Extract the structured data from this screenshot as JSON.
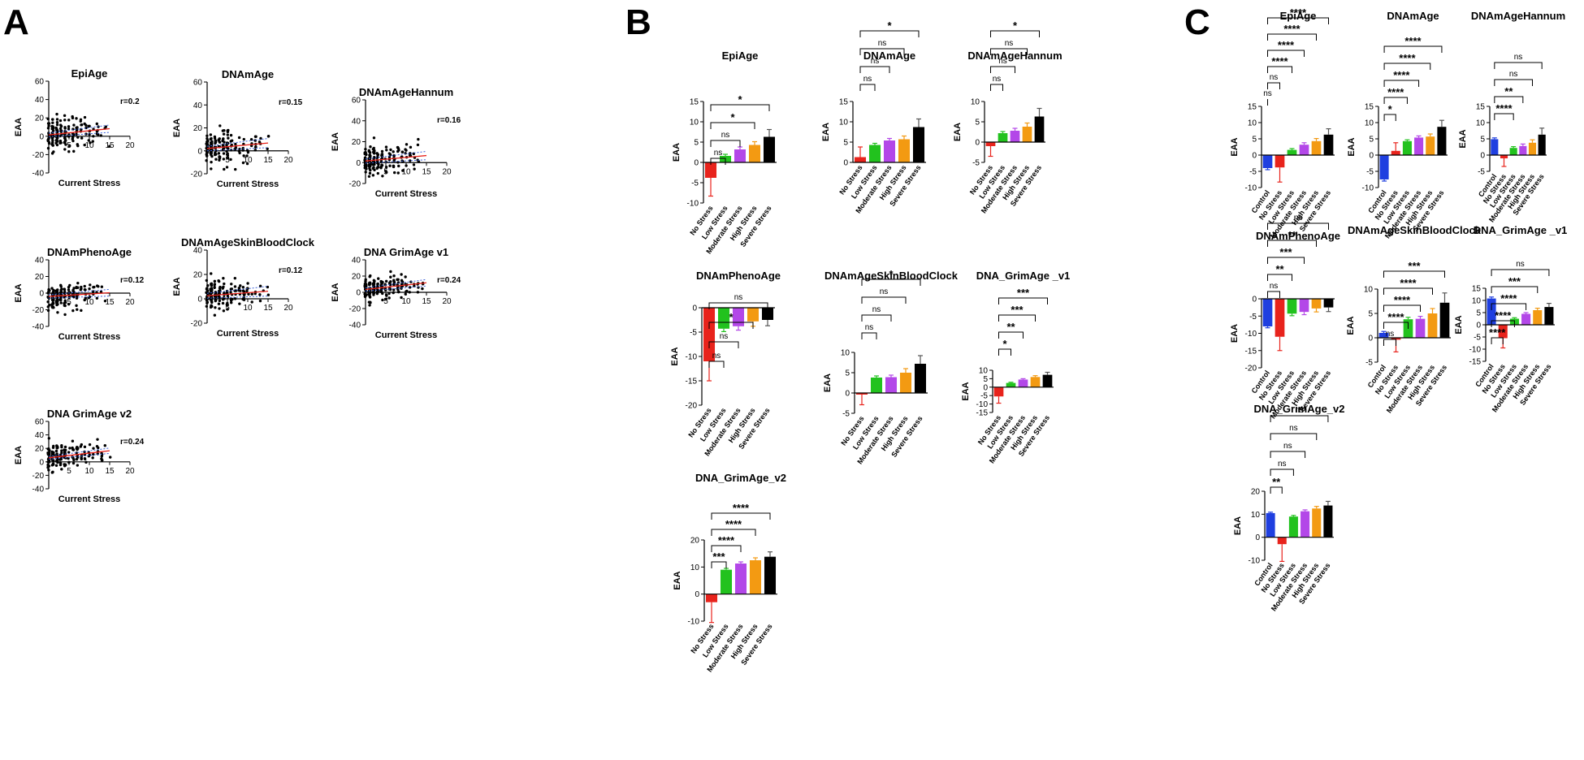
{
  "panels": [
    {
      "letter": "A"
    },
    {
      "letter": "B"
    },
    {
      "letter": "C"
    }
  ],
  "colors": {
    "control": "#1f3fe0",
    "no_stress": "#e8231c",
    "low_stress": "#22c21e",
    "moderate_stress": "#b347e8",
    "high_stress": "#f39a12",
    "severe_stress": "#000000",
    "fit_red": "#e8231c",
    "fit_blue": "#3a5fd8"
  },
  "categories_B": [
    "No Stress",
    "Low Stress",
    "Moderate Stress",
    "High Stress",
    "Severe Stress"
  ],
  "categories_C": [
    "Control",
    "No Stress",
    "Low Stress",
    "Moderate Stress",
    "High Stress",
    "Severe Stress"
  ],
  "chart_data": [
    {
      "panel": "A",
      "type": "scatter",
      "title": "EpiAge",
      "xlabel": "Current Stress",
      "ylabel": "EAA",
      "xlim": [
        0,
        20
      ],
      "ylim": [
        -40,
        60
      ],
      "xticks": [
        5,
        10,
        15,
        20
      ],
      "yticks": [
        -40,
        -20,
        0,
        20,
        40,
        60
      ],
      "r_label": "r=0.2",
      "fit": {
        "slope": 0.45,
        "intercept": 1.5
      }
    },
    {
      "panel": "A",
      "type": "scatter",
      "title": "DNAmAge",
      "xlabel": "Current Stress",
      "ylabel": "EAA",
      "xlim": [
        0,
        20
      ],
      "ylim": [
        -20,
        60
      ],
      "xticks": [
        5,
        10,
        15,
        20
      ],
      "yticks": [
        -20,
        0,
        20,
        40,
        60
      ],
      "r_label": "r=0.15",
      "fit": {
        "slope": 0.32,
        "intercept": 2.0
      }
    },
    {
      "panel": "A",
      "type": "scatter",
      "title": "DNAmAgeHannum",
      "xlabel": "Current Stress",
      "ylabel": "EAA",
      "xlim": [
        0,
        20
      ],
      "ylim": [
        -20,
        60
      ],
      "xticks": [
        5,
        10,
        15,
        20
      ],
      "yticks": [
        -20,
        0,
        20,
        40,
        60
      ],
      "r_label": "r=0.16",
      "fit": {
        "slope": 0.35,
        "intercept": 1.5
      }
    },
    {
      "panel": "A",
      "type": "scatter",
      "title": "DNAmPhenoAge",
      "xlabel": "Current Stress",
      "ylabel": "EAA",
      "xlim": [
        0,
        20
      ],
      "ylim": [
        -40,
        40
      ],
      "xticks": [
        5,
        10,
        15,
        20
      ],
      "yticks": [
        -40,
        -20,
        0,
        20,
        40
      ],
      "r_label": "r=0.12",
      "fit": {
        "slope": 0.3,
        "intercept": -4.0
      }
    },
    {
      "panel": "A",
      "type": "scatter",
      "title": "DNAmAgeSkinBloodClock",
      "xlabel": "Current Stress",
      "ylabel": "EAA",
      "xlim": [
        0,
        20
      ],
      "ylim": [
        -20,
        40
      ],
      "xticks": [
        5,
        10,
        15,
        20
      ],
      "yticks": [
        -20,
        0,
        20,
        40
      ],
      "r_label": "r=0.12",
      "fit": {
        "slope": 0.25,
        "intercept": 2.5
      }
    },
    {
      "panel": "A",
      "type": "scatter",
      "title": "DNA GrimAge v1",
      "xlabel": "Current Stress",
      "ylabel": "EAA",
      "xlim": [
        0,
        20
      ],
      "ylim": [
        -40,
        40
      ],
      "xticks": [
        5,
        10,
        15,
        20
      ],
      "yticks": [
        -40,
        -20,
        0,
        20,
        40
      ],
      "r_label": "r=0.24",
      "fit": {
        "slope": 0.55,
        "intercept": 3.5
      }
    },
    {
      "panel": "A",
      "type": "scatter",
      "title": "DNA GrimAge v2",
      "xlabel": "Current Stress",
      "ylabel": "EAA",
      "xlim": [
        0,
        20
      ],
      "ylim": [
        -40,
        60
      ],
      "xticks": [
        5,
        10,
        15,
        20
      ],
      "yticks": [
        -40,
        -20,
        0,
        20,
        40,
        60
      ],
      "r_label": "r=0.24",
      "fit": {
        "slope": 0.7,
        "intercept": 6.0
      }
    },
    {
      "panel": "B",
      "type": "bar",
      "title": "EpiAge",
      "ylabel": "EAA",
      "ylim": [
        -10,
        15
      ],
      "yticks": [
        -10,
        -5,
        0,
        5,
        10,
        15
      ],
      "values": [
        -3.8,
        1.6,
        3.2,
        4.3,
        6.3
      ],
      "errors": [
        4.5,
        0.4,
        0.6,
        0.8,
        1.8
      ],
      "sig": [
        "ns",
        "ns",
        "*",
        "*"
      ]
    },
    {
      "panel": "B",
      "type": "bar",
      "title": "DNAmAge",
      "ylabel": "EAA",
      "ylim": [
        0,
        15
      ],
      "yticks": [
        0,
        5,
        10,
        15
      ],
      "values": [
        1.3,
        4.3,
        5.4,
        5.7,
        8.7
      ],
      "errors": [
        2.5,
        0.4,
        0.5,
        0.8,
        2.0
      ],
      "sig": [
        "ns",
        "ns",
        "ns",
        "*"
      ]
    },
    {
      "panel": "B",
      "type": "bar",
      "title": "DNAmAgeHannum",
      "ylabel": "EAA",
      "ylim": [
        -5,
        10
      ],
      "yticks": [
        -5,
        0,
        5,
        10
      ],
      "values": [
        -1.0,
        2.2,
        2.8,
        3.8,
        6.3
      ],
      "errors": [
        2.5,
        0.4,
        0.6,
        0.9,
        2.0
      ],
      "sig": [
        "ns",
        "ns",
        "ns",
        "*"
      ]
    },
    {
      "panel": "B",
      "type": "bar",
      "title": "DNAmPhenoAge",
      "ylabel": "EAA",
      "ylim": [
        -20,
        0
      ],
      "yticks": [
        -20,
        -15,
        -10,
        -5,
        0
      ],
      "values": [
        -11.0,
        -4.3,
        -3.8,
        -2.8,
        -2.5
      ],
      "errors": [
        4.0,
        0.6,
        0.8,
        1.0,
        1.2
      ],
      "sig": [
        "ns",
        "ns",
        "*",
        "ns"
      ]
    },
    {
      "panel": "B",
      "type": "bar",
      "title": "DNAmAgeSkinBloodClock",
      "ylabel": "EAA",
      "ylim": [
        -5,
        10
      ],
      "yticks": [
        -5,
        0,
        5,
        10
      ],
      "values": [
        -0.4,
        3.8,
        3.9,
        5.0,
        7.2
      ],
      "errors": [
        2.5,
        0.4,
        0.5,
        1.0,
        2.0
      ],
      "sig": [
        "ns",
        "ns",
        "ns",
        "*"
      ]
    },
    {
      "panel": "B",
      "type": "bar",
      "title": "DNA_GrimAge _v1",
      "ylabel": "EAA",
      "ylim": [
        -15,
        10
      ],
      "yticks": [
        -15,
        -10,
        -5,
        0,
        5,
        10
      ],
      "values": [
        -5.5,
        2.5,
        4.5,
        6.0,
        7.3
      ],
      "errors": [
        4.0,
        0.4,
        0.5,
        0.8,
        1.5
      ],
      "sig": [
        "*",
        "**",
        "***",
        "***"
      ]
    },
    {
      "panel": "B",
      "type": "bar",
      "title": "DNA_GrimAge_v2",
      "ylabel": "EAA",
      "ylim": [
        -10,
        20
      ],
      "yticks": [
        -10,
        0,
        10,
        20
      ],
      "values": [
        -3.0,
        9.0,
        11.3,
        12.5,
        13.8
      ],
      "errors": [
        7.5,
        0.5,
        0.6,
        0.9,
        1.8
      ],
      "sig": [
        "***",
        "****",
        "****",
        "****"
      ]
    },
    {
      "panel": "C",
      "type": "bar",
      "title": "EpiAge",
      "ylabel": "EAA",
      "ylim": [
        -10,
        15
      ],
      "yticks": [
        -10,
        -5,
        0,
        5,
        10,
        15
      ],
      "values": [
        -4.0,
        -3.8,
        1.6,
        3.2,
        4.3,
        6.3
      ],
      "errors": [
        0.5,
        4.5,
        0.4,
        0.6,
        0.8,
        1.8
      ],
      "sig": [
        "ns",
        "ns",
        "****",
        "****",
        "****",
        "****"
      ]
    },
    {
      "panel": "C",
      "type": "bar",
      "title": "DNAmAge",
      "ylabel": "EAA",
      "ylim": [
        -10,
        15
      ],
      "yticks": [
        -10,
        -5,
        0,
        5,
        10,
        15
      ],
      "values": [
        -7.5,
        1.3,
        4.3,
        5.4,
        5.7,
        8.7
      ],
      "errors": [
        0.5,
        2.5,
        0.4,
        0.5,
        0.8,
        2.0
      ],
      "sig": [
        "*",
        "****",
        "****",
        "****",
        "****"
      ]
    },
    {
      "panel": "C",
      "type": "bar",
      "title": "DNAmAgeHannum",
      "ylabel": "EAA",
      "ylim": [
        -5,
        15
      ],
      "yticks": [
        -5,
        0,
        5,
        10,
        15
      ],
      "values": [
        4.9,
        -1.0,
        2.2,
        2.8,
        3.8,
        6.3
      ],
      "errors": [
        0.4,
        2.5,
        0.4,
        0.6,
        0.9,
        2.0
      ],
      "sig": [
        "****",
        "**",
        "ns",
        "ns"
      ]
    },
    {
      "panel": "C",
      "type": "bar",
      "title": "DNAmPhenoAge",
      "ylabel": "EAA",
      "ylim": [
        -20,
        0
      ],
      "yticks": [
        -20,
        -15,
        -10,
        -5,
        0
      ],
      "values": [
        -8.0,
        -11.0,
        -4.3,
        -3.8,
        -2.8,
        -2.5
      ],
      "errors": [
        0.4,
        4.0,
        0.6,
        0.8,
        1.0,
        1.2
      ],
      "sig": [
        "ns",
        "**",
        "***",
        "**",
        "ns"
      ]
    },
    {
      "panel": "C",
      "type": "bar",
      "title": "DNAmAgeSkinBloodClock",
      "ylabel": "EAA",
      "ylim": [
        -5,
        10
      ],
      "yticks": [
        -5,
        0,
        5,
        10
      ],
      "values": [
        1.0,
        -0.4,
        3.8,
        3.9,
        5.0,
        7.2
      ],
      "errors": [
        0.3,
        2.5,
        0.4,
        0.5,
        1.0,
        2.0
      ],
      "sig": [
        "ns",
        "****",
        "****",
        "****",
        "***"
      ]
    },
    {
      "panel": "C",
      "type": "bar",
      "title": "DNA_GrimAge _v1",
      "ylabel": "EAA",
      "ylim": [
        -15,
        15
      ],
      "yticks": [
        -15,
        -10,
        -5,
        0,
        5,
        10,
        15
      ],
      "values": [
        10.8,
        -5.5,
        2.5,
        4.5,
        6.0,
        7.3
      ],
      "errors": [
        0.6,
        4.0,
        0.4,
        0.5,
        0.8,
        1.5
      ],
      "sig": [
        "****",
        "****",
        "****",
        "***",
        "ns"
      ]
    },
    {
      "panel": "C",
      "type": "bar",
      "title": "DNA_GrimAge_v2",
      "ylabel": "EAA",
      "ylim": [
        -10,
        20
      ],
      "yticks": [
        -10,
        0,
        10,
        20
      ],
      "values": [
        10.5,
        -3.0,
        9.0,
        11.3,
        12.5,
        13.8
      ],
      "errors": [
        0.4,
        7.5,
        0.5,
        0.6,
        0.9,
        1.8
      ],
      "sig": [
        "**",
        "ns",
        "ns",
        "ns",
        "ns"
      ]
    }
  ]
}
